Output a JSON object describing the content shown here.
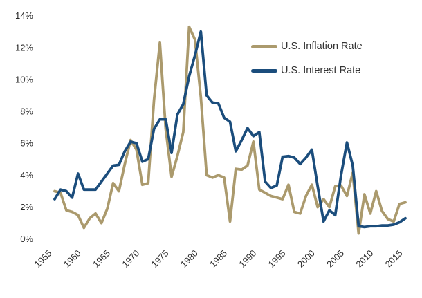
{
  "chart_data": {
    "type": "line",
    "title": "",
    "xlabel": "",
    "ylabel": "",
    "x": [
      1956,
      1957,
      1958,
      1959,
      1960,
      1961,
      1962,
      1963,
      1964,
      1965,
      1966,
      1967,
      1968,
      1969,
      1970,
      1971,
      1972,
      1973,
      1974,
      1975,
      1976,
      1977,
      1978,
      1979,
      1980,
      1981,
      1982,
      1983,
      1984,
      1985,
      1986,
      1987,
      1988,
      1989,
      1990,
      1991,
      1992,
      1993,
      1994,
      1995,
      1996,
      1997,
      1998,
      1999,
      2000,
      2001,
      2002,
      2003,
      2004,
      2005,
      2006,
      2007,
      2008,
      2009,
      2010,
      2011,
      2012,
      2013,
      2014,
      2015,
      2016
    ],
    "series": [
      {
        "name": "U.S. Inflation Rate",
        "color": "#AB9A6D",
        "values": [
          3.0,
          2.9,
          1.8,
          1.7,
          1.5,
          0.7,
          1.3,
          1.6,
          1.0,
          1.9,
          3.5,
          3.0,
          4.7,
          6.2,
          5.6,
          3.4,
          3.5,
          8.7,
          12.3,
          6.9,
          3.9,
          5.2,
          6.7,
          13.3,
          12.5,
          8.9,
          4.0,
          3.85,
          4.0,
          3.85,
          1.1,
          4.4,
          4.35,
          4.6,
          6.1,
          3.1,
          2.9,
          2.7,
          2.6,
          2.5,
          3.4,
          1.7,
          1.6,
          2.7,
          3.4,
          2.0,
          2.5,
          2.0,
          3.3,
          3.35,
          2.7,
          4.15,
          0.35,
          2.8,
          1.6,
          3.0,
          1.75,
          1.25,
          1.1,
          2.2,
          2.3
        ]
      },
      {
        "name": "U.S. Interest Rate",
        "color": "#1B4D7C",
        "values": [
          2.5,
          3.1,
          3.0,
          2.6,
          4.1,
          3.1,
          3.1,
          3.1,
          3.6,
          4.1,
          4.6,
          4.65,
          5.5,
          6.1,
          6.0,
          4.85,
          5.0,
          6.9,
          7.5,
          7.5,
          5.4,
          7.8,
          8.45,
          10.2,
          11.5,
          13.0,
          9.0,
          8.55,
          8.5,
          7.6,
          7.35,
          5.5,
          6.2,
          6.95,
          6.45,
          6.7,
          3.6,
          3.2,
          3.35,
          5.15,
          5.2,
          5.1,
          4.7,
          5.1,
          5.6,
          3.3,
          1.1,
          1.8,
          1.5,
          4.0,
          6.05,
          4.6,
          0.8,
          0.75,
          0.8,
          0.8,
          0.85,
          0.85,
          0.9,
          1.05,
          1.3
        ]
      }
    ],
    "ylim": [
      0,
      14
    ],
    "y_ticks": [
      "0%",
      "2%",
      "4%",
      "6%",
      "8%",
      "10%",
      "12%",
      "14%"
    ],
    "x_ticks": [
      "1955",
      "1960",
      "1965",
      "1970",
      "1975",
      "1980",
      "1985",
      "1990",
      "1995",
      "2000",
      "2005",
      "2010",
      "2015"
    ],
    "grid": false,
    "axis_lines": false,
    "legend_position": "top-right"
  },
  "legend": {
    "inflation_label": "U.S. Inflation Rate",
    "interest_label": "U.S. Interest Rate"
  },
  "colors": {
    "inflation_line": "#AB9A6D",
    "interest_line": "#1B4D7C",
    "tick_text": "#262626",
    "legend_text": "#333333",
    "background": "#FFFFFF"
  }
}
